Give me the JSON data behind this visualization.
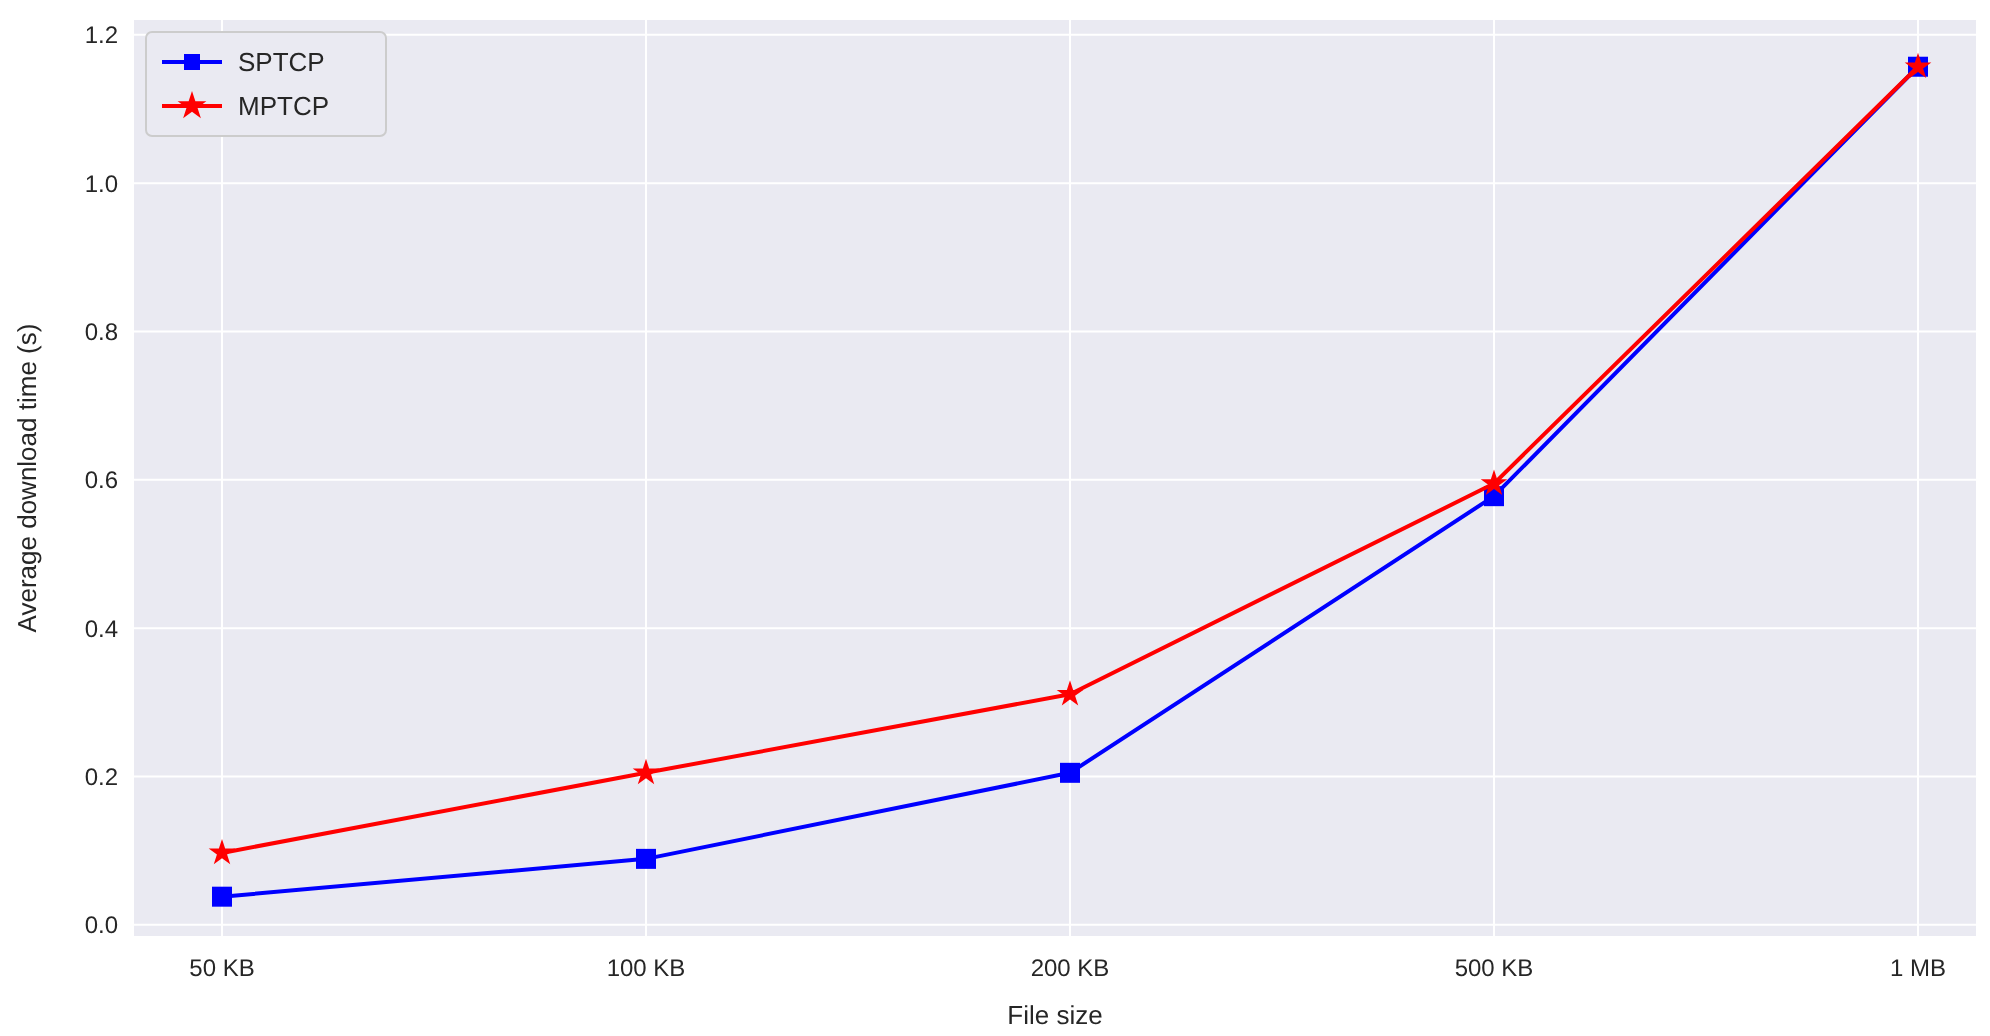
{
  "chart_data": {
    "type": "line",
    "xlabel": "File size",
    "ylabel": "Average download time (s)",
    "categories": [
      "50 KB",
      "100 KB",
      "200 KB",
      "500 KB",
      "1 MB"
    ],
    "series": [
      {
        "name": "SPTCP",
        "color": "#0000ff",
        "marker": "square",
        "values": [
          0.038,
          0.089,
          0.205,
          0.578,
          1.157
        ]
      },
      {
        "name": "MPTCP",
        "color": "#ff0000",
        "marker": "star",
        "values": [
          0.097,
          0.205,
          0.311,
          0.595,
          1.157
        ]
      }
    ],
    "ylim": [
      -0.015,
      1.22
    ],
    "yticks": [
      {
        "value": 0,
        "label": "0.0"
      },
      0.2,
      0.4,
      0.6,
      0.8,
      {
        "value": 1,
        "label": "1.0"
      },
      1.2
    ],
    "grid": true,
    "legend": "top left",
    "line_style": "solid"
  }
}
